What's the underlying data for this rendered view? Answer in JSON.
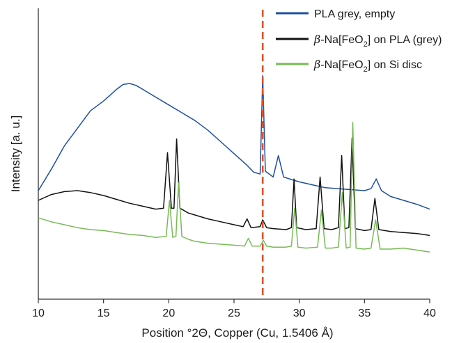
{
  "chart_data": {
    "type": "line",
    "xlabel": "Position °2Θ, Copper (Cu, 1.5406 Å)",
    "ylabel": "Intensity [a. u.]",
    "xlim": [
      10,
      40
    ],
    "xticks": [
      10,
      15,
      20,
      25,
      30,
      35,
      40
    ],
    "y_ticks_shown": false,
    "grid": false,
    "legend_position": "top-right",
    "reference_line": {
      "x": 27.2,
      "color": "#e0512a",
      "style": "dashed"
    },
    "series": [
      {
        "name": "PLA grey, empty",
        "color": "#1f4fa0",
        "x": [
          10.0,
          11.0,
          12.0,
          13.0,
          14.0,
          15.0,
          16.0,
          16.5,
          17.0,
          17.5,
          18.0,
          19.0,
          20.0,
          21.0,
          22.0,
          23.0,
          24.0,
          25.0,
          26.0,
          26.5,
          27.0,
          27.2,
          27.4,
          28.0,
          28.4,
          28.8,
          29.5,
          30.0,
          31.0,
          32.0,
          33.0,
          34.0,
          35.0,
          35.5,
          35.9,
          36.3,
          37.0,
          38.0,
          39.0,
          40.0
        ],
        "y": [
          2.0,
          3.1,
          4.3,
          5.2,
          6.1,
          6.6,
          7.2,
          7.45,
          7.5,
          7.4,
          7.2,
          6.8,
          6.4,
          6.0,
          5.6,
          5.1,
          4.5,
          3.9,
          3.3,
          2.95,
          2.85,
          7.9,
          3.0,
          2.7,
          3.8,
          2.7,
          2.55,
          2.45,
          2.3,
          2.15,
          2.1,
          2.05,
          2.0,
          2.1,
          2.6,
          2.0,
          1.7,
          1.5,
          1.3,
          1.05
        ]
      },
      {
        "name": "β-Na[FeO2] on PLA (grey)",
        "color": "#111111",
        "x": [
          10.0,
          11.0,
          12.0,
          13.0,
          14.0,
          15.0,
          16.0,
          17.0,
          18.0,
          19.0,
          19.6,
          19.9,
          20.2,
          20.4,
          20.6,
          20.85,
          21.5,
          22.0,
          23.0,
          24.0,
          25.0,
          25.7,
          26.0,
          26.3,
          27.0,
          27.2,
          27.5,
          28.0,
          29.0,
          29.4,
          29.6,
          29.8,
          30.5,
          31.3,
          31.6,
          31.9,
          32.5,
          33.0,
          33.25,
          33.5,
          33.8,
          34.05,
          34.3,
          35.0,
          35.5,
          35.8,
          36.1,
          37.0,
          38.0,
          39.0,
          40.0
        ],
        "y": [
          1.5,
          1.8,
          1.95,
          2.0,
          1.9,
          1.75,
          1.55,
          1.35,
          1.2,
          1.05,
          1.1,
          3.95,
          1.1,
          1.1,
          4.65,
          1.1,
          0.85,
          0.75,
          0.55,
          0.4,
          0.25,
          0.15,
          0.55,
          0.1,
          0.15,
          0.5,
          0.1,
          0.05,
          0.0,
          0.1,
          2.6,
          0.1,
          0.0,
          0.05,
          2.7,
          0.05,
          0.0,
          0.1,
          3.8,
          0.05,
          0.1,
          4.7,
          0.05,
          -0.05,
          0.0,
          1.6,
          0.0,
          -0.1,
          -0.15,
          -0.2,
          -0.3
        ]
      },
      {
        "name": "β-Na[FeO2] on Si disc",
        "color": "#77bb55",
        "x": [
          10.0,
          11.0,
          12.0,
          13.0,
          14.0,
          15.0,
          16.0,
          17.0,
          18.0,
          19.0,
          19.8,
          20.05,
          20.3,
          20.55,
          20.75,
          21.0,
          21.5,
          22.0,
          23.0,
          24.0,
          25.0,
          25.8,
          26.1,
          26.4,
          27.0,
          27.25,
          27.5,
          28.0,
          29.0,
          29.4,
          29.65,
          29.9,
          30.5,
          31.4,
          31.7,
          32.0,
          32.5,
          33.0,
          33.3,
          33.6,
          33.9,
          34.1,
          34.35,
          35.0,
          35.5,
          35.85,
          36.2,
          37.0,
          38.0,
          39.0,
          40.0
        ],
        "y": [
          0.6,
          0.4,
          0.25,
          0.1,
          0.0,
          -0.05,
          -0.15,
          -0.25,
          -0.3,
          -0.4,
          -0.35,
          1.5,
          -0.4,
          -0.35,
          2.4,
          -0.35,
          -0.5,
          -0.6,
          -0.7,
          -0.75,
          -0.8,
          -0.85,
          -0.45,
          -0.85,
          -0.85,
          -0.55,
          -0.85,
          -0.9,
          -0.9,
          -0.85,
          1.1,
          -0.9,
          -0.95,
          -0.9,
          1.0,
          -0.95,
          -0.95,
          -0.9,
          1.9,
          -0.95,
          -0.9,
          5.5,
          -0.95,
          -1.0,
          -0.95,
          0.5,
          -1.0,
          -1.0,
          -0.95,
          -1.05,
          -1.15
        ]
      }
    ]
  }
}
